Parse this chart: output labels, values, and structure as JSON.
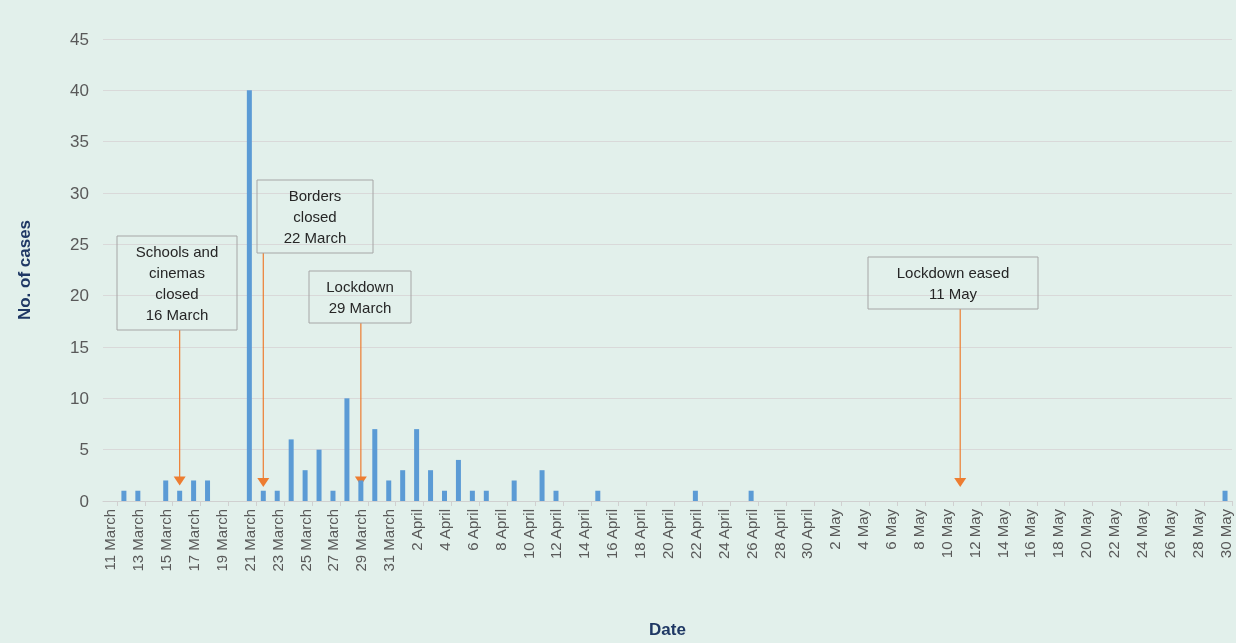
{
  "chart_data": {
    "type": "bar",
    "xlabel": "Date",
    "ylabel": "No. of cases",
    "categories": [
      "11 March",
      null,
      "13 March",
      null,
      "15 March",
      null,
      "17 March",
      null,
      "19 March",
      null,
      "21 March",
      null,
      "23 March",
      null,
      "25 March",
      null,
      "27 March",
      null,
      "29 March",
      null,
      "31 March",
      null,
      "2 April",
      null,
      "4 April",
      null,
      "6 April",
      null,
      "8 April",
      null,
      "10 April",
      null,
      "12 April",
      null,
      "14 April",
      null,
      "16 April",
      null,
      "18 April",
      null,
      "20 April",
      null,
      "22 April",
      null,
      "24 April",
      null,
      "26 April",
      null,
      "28 April",
      null,
      "30 April",
      null,
      "2 May",
      null,
      "4 May",
      null,
      "6 May",
      null,
      "8 May",
      null,
      "10 May",
      null,
      "12 May",
      null,
      "14 May",
      null,
      "16 May",
      null,
      "18 May",
      null,
      "20 May",
      null,
      "22 May",
      null,
      "24 May",
      null,
      "26 May",
      null,
      "28 May",
      null,
      "30 May"
    ],
    "values": [
      0,
      1,
      1,
      0,
      2,
      1,
      2,
      2,
      0,
      0,
      40,
      1,
      1,
      6,
      3,
      5,
      1,
      10,
      2,
      7,
      2,
      3,
      7,
      3,
      1,
      4,
      1,
      1,
      0,
      2,
      0,
      3,
      1,
      0,
      0,
      1,
      0,
      0,
      0,
      0,
      0,
      0,
      1,
      0,
      0,
      0,
      1,
      0,
      0,
      0,
      0,
      0,
      0,
      0,
      0,
      0,
      0,
      0,
      0,
      0,
      0,
      0,
      0,
      0,
      0,
      0,
      0,
      0,
      0,
      0,
      0,
      0,
      0,
      0,
      0,
      0,
      0,
      0,
      0,
      0,
      1
    ],
    "color": "#5b9bd5",
    "ylim": [
      0,
      45
    ],
    "yticks": [
      0,
      5,
      10,
      15,
      20,
      25,
      30,
      35,
      40,
      45
    ],
    "grid": "y",
    "annotations": [
      {
        "text": "Schools and\ncinemas\nclosed\n16 March",
        "y": 1.5
      },
      "Borders\nclosed\n22 March",
      {
        "text": "Lockdown\n29 March",
        "y": 1.5
      },
      "Lockdown eased\n11 May"
    ]
  }
}
